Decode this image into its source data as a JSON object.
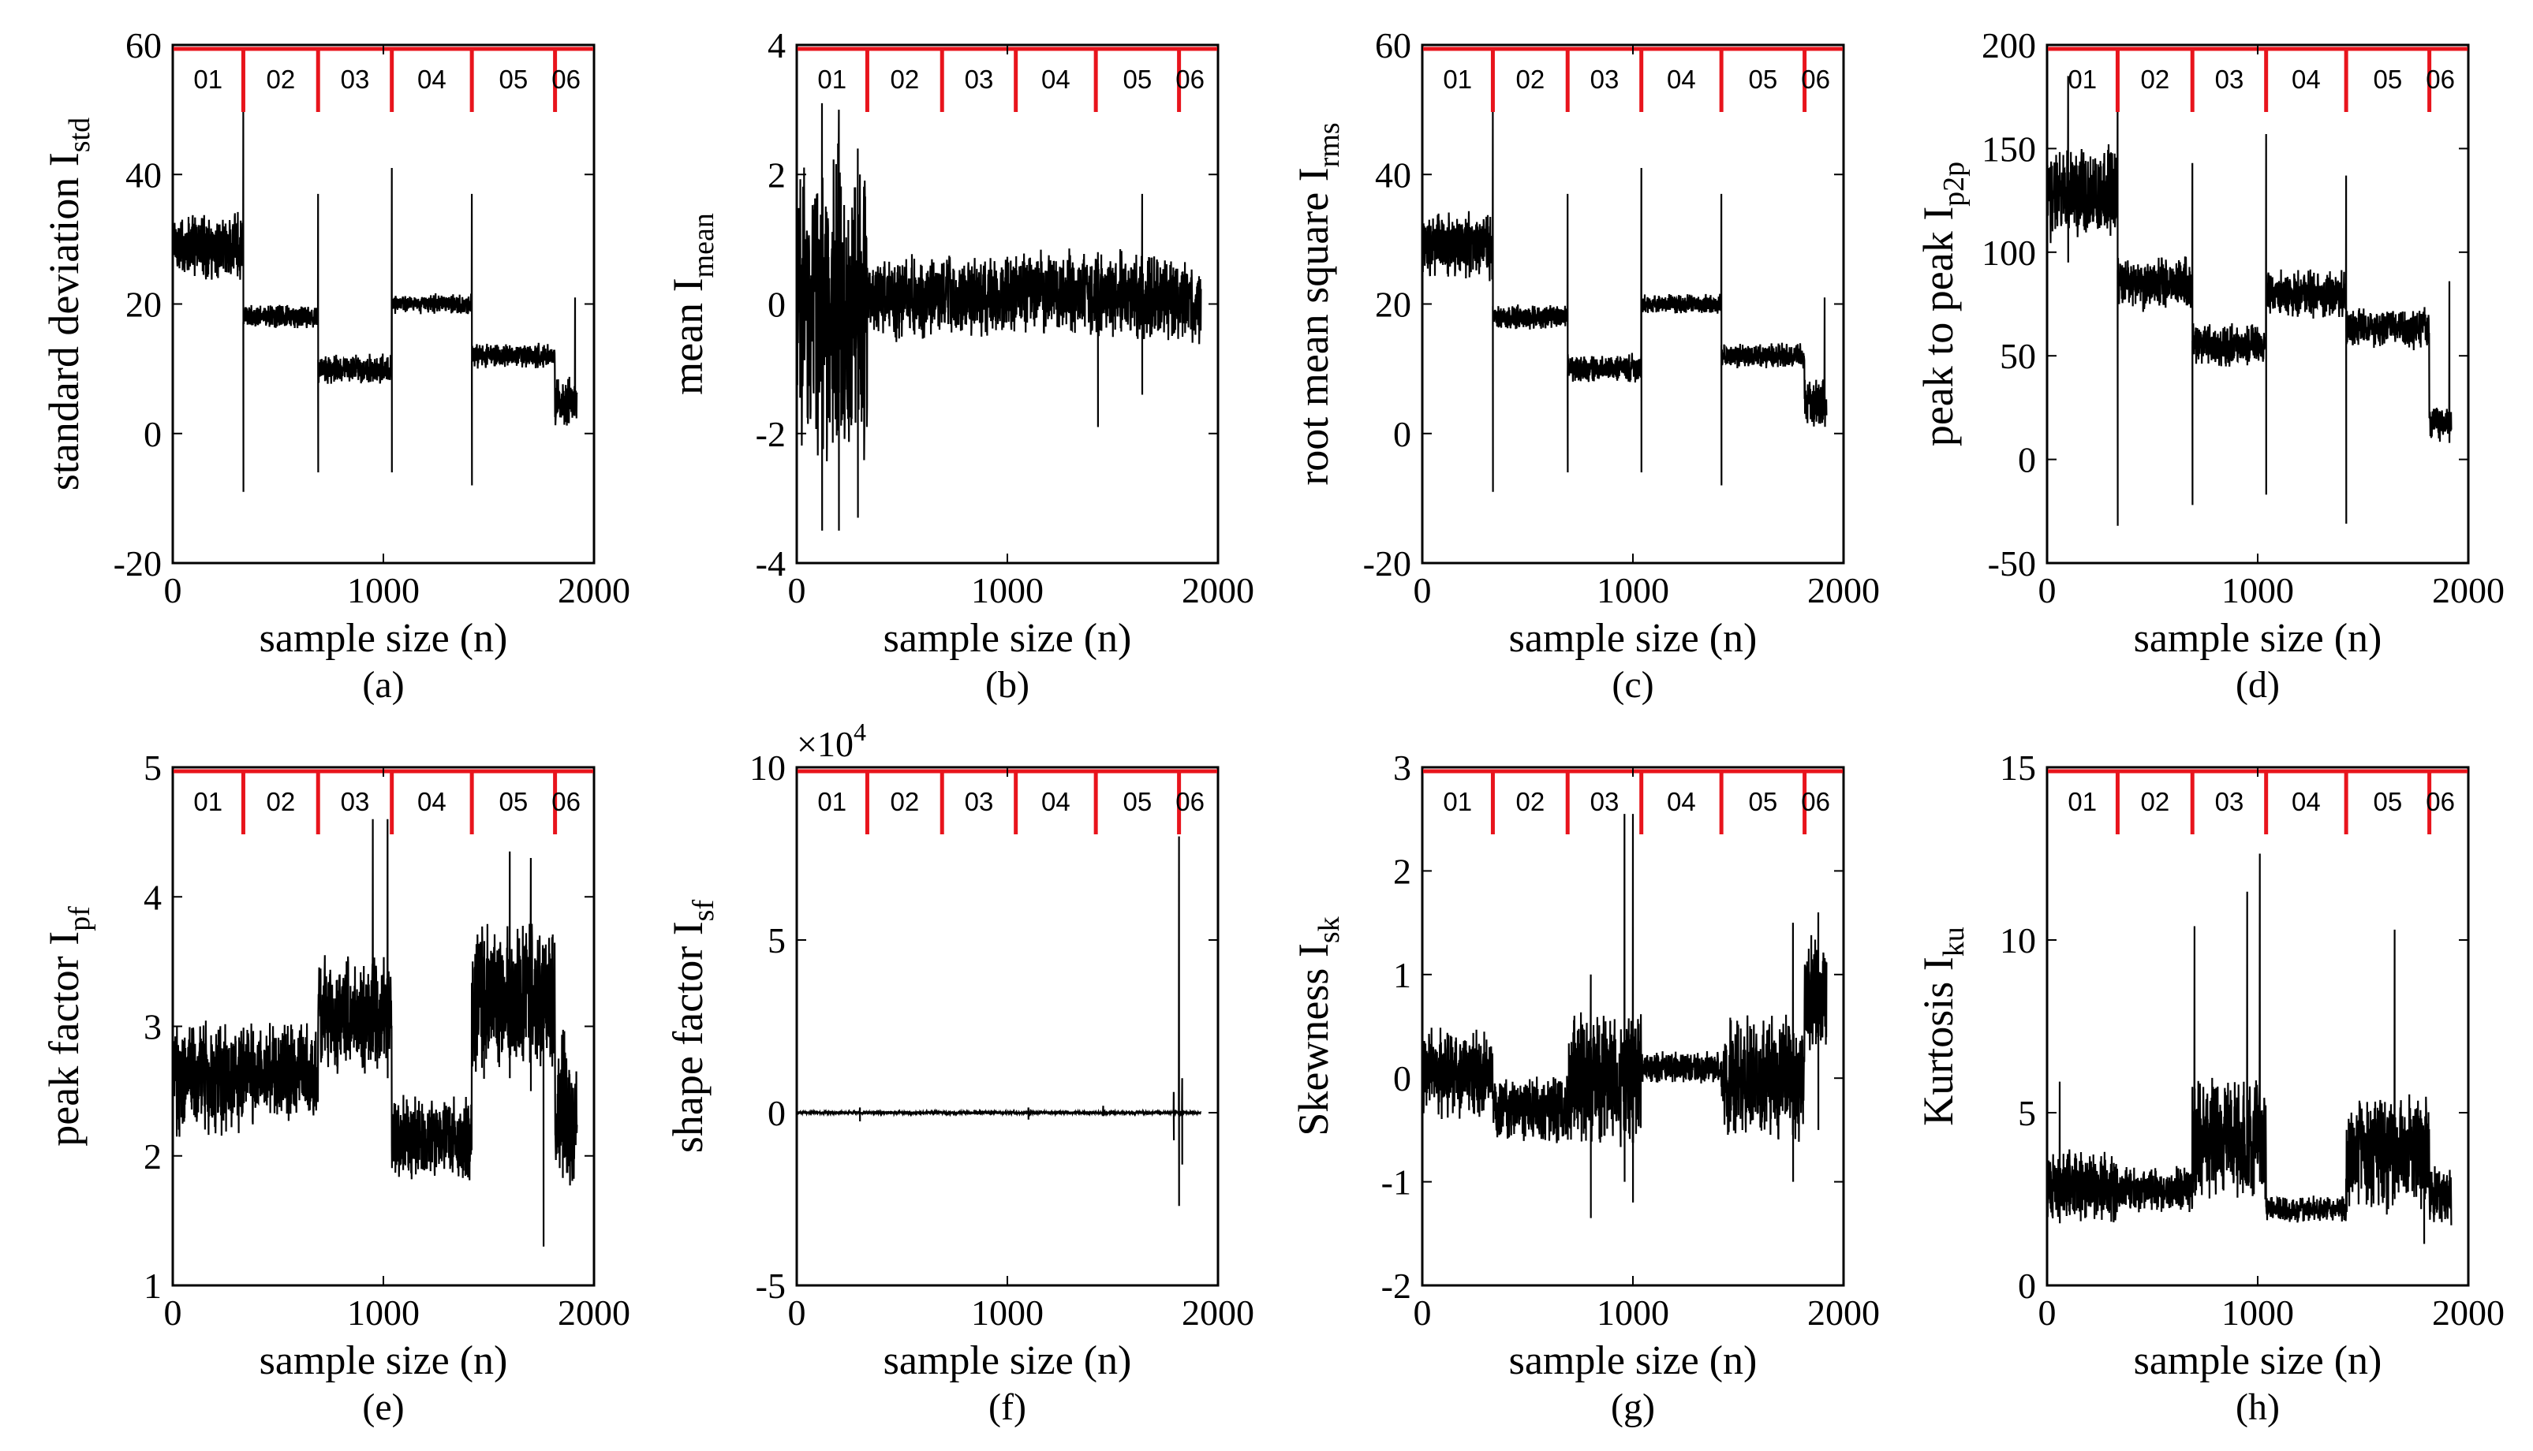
{
  "colors": {
    "signal": "#000000",
    "segment_marker": "#e8141c",
    "axes": "#000000",
    "background": "#ffffff"
  },
  "chart_data": [
    {
      "id": "a",
      "caption": "(a)",
      "type": "line",
      "ylabel": {
        "main": "standard deviation I",
        "sub": "std"
      },
      "xlabel": "sample size (n)",
      "xlim": [
        0,
        2000
      ],
      "ylim": [
        -20,
        60
      ],
      "xticks": [
        0,
        1000,
        2000
      ],
      "xtick_labels": [
        "0",
        "1000",
        "2000"
      ],
      "yticks": [
        -20,
        0,
        20,
        40,
        60
      ],
      "ytick_labels": [
        "-20",
        "0",
        "20",
        "40",
        "60"
      ],
      "segment_labels": [
        "01",
        "02",
        "03",
        "04",
        "05",
        "06"
      ],
      "segment_boundaries": [
        0,
        335,
        690,
        1040,
        1420,
        1815,
        1920
      ],
      "series": [
        {
          "segments": [
            {
              "start": 0,
              "end": 335,
              "level": 29,
              "noise": 4
            },
            {
              "start": 335,
              "end": 690,
              "level": 18,
              "noise": 1.5
            },
            {
              "start": 690,
              "end": 1040,
              "level": 10,
              "noise": 1.8
            },
            {
              "start": 1040,
              "end": 1420,
              "level": 20,
              "noise": 1.2
            },
            {
              "start": 1420,
              "end": 1815,
              "level": 12,
              "noise": 1.5
            },
            {
              "start": 1815,
              "end": 1920,
              "level": 5,
              "noise": 3
            }
          ],
          "spikes": [
            {
              "x": 335,
              "top": 50,
              "bottom": -9
            },
            {
              "x": 690,
              "top": 37,
              "bottom": -6
            },
            {
              "x": 1040,
              "top": 41,
              "bottom": -6
            },
            {
              "x": 1420,
              "top": 37,
              "bottom": -8
            },
            {
              "x": 1910,
              "top": 21,
              "bottom": 5
            }
          ]
        }
      ]
    },
    {
      "id": "b",
      "caption": "(b)",
      "type": "line",
      "ylabel": {
        "main": "mean I",
        "sub": "mean"
      },
      "xlabel": "sample size (n)",
      "xlim": [
        0,
        2000
      ],
      "ylim": [
        -4,
        4
      ],
      "xticks": [
        0,
        1000,
        2000
      ],
      "xtick_labels": [
        "0",
        "1000",
        "2000"
      ],
      "yticks": [
        -4,
        -2,
        0,
        2,
        4
      ],
      "ytick_labels": [
        "-4",
        "-2",
        "0",
        "2",
        "4"
      ],
      "segment_labels": [
        "01",
        "02",
        "03",
        "04",
        "05",
        "06"
      ],
      "segment_boundaries": [
        0,
        335,
        690,
        1040,
        1420,
        1815,
        1920
      ],
      "series": [
        {
          "segments": [
            {
              "start": 0,
              "end": 335,
              "level": 0,
              "noise": 1.8
            },
            {
              "start": 335,
              "end": 690,
              "level": 0.1,
              "noise": 0.5
            },
            {
              "start": 690,
              "end": 1040,
              "level": 0.1,
              "noise": 0.5
            },
            {
              "start": 1040,
              "end": 1420,
              "level": 0.2,
              "noise": 0.5
            },
            {
              "start": 1420,
              "end": 1815,
              "level": 0.1,
              "noise": 0.55
            },
            {
              "start": 1815,
              "end": 1920,
              "level": 0,
              "noise": 0.5
            }
          ],
          "spikes": [
            {
              "x": 120,
              "top": 3.1,
              "bottom": -3.5
            },
            {
              "x": 200,
              "top": 3.0,
              "bottom": -3.5
            },
            {
              "x": 290,
              "top": 2.4,
              "bottom": -3.3
            },
            {
              "x": 1430,
              "top": 0.8,
              "bottom": -1.9
            },
            {
              "x": 1640,
              "top": 1.7,
              "bottom": -1.4
            }
          ]
        }
      ]
    },
    {
      "id": "c",
      "caption": "(c)",
      "type": "line",
      "ylabel": {
        "main": "root mean square I",
        "sub": "rms"
      },
      "xlabel": "sample size (n)",
      "xlim": [
        0,
        2000
      ],
      "ylim": [
        -20,
        60
      ],
      "xticks": [
        0,
        1000,
        2000
      ],
      "xtick_labels": [
        "0",
        "1000",
        "2000"
      ],
      "yticks": [
        -20,
        0,
        20,
        40,
        60
      ],
      "ytick_labels": [
        "-20",
        "0",
        "20",
        "40",
        "60"
      ],
      "segment_labels": [
        "01",
        "02",
        "03",
        "04",
        "05",
        "06"
      ],
      "segment_boundaries": [
        0,
        335,
        690,
        1040,
        1420,
        1815,
        1920
      ],
      "series": [
        {
          "segments": [
            {
              "start": 0,
              "end": 335,
              "level": 29,
              "noise": 4
            },
            {
              "start": 335,
              "end": 690,
              "level": 18,
              "noise": 1.5
            },
            {
              "start": 690,
              "end": 1040,
              "level": 10,
              "noise": 1.8
            },
            {
              "start": 1040,
              "end": 1420,
              "level": 20,
              "noise": 1.2
            },
            {
              "start": 1420,
              "end": 1815,
              "level": 12,
              "noise": 1.5
            },
            {
              "start": 1815,
              "end": 1920,
              "level": 5,
              "noise": 3
            }
          ],
          "spikes": [
            {
              "x": 335,
              "top": 50,
              "bottom": -9
            },
            {
              "x": 690,
              "top": 37,
              "bottom": -6
            },
            {
              "x": 1040,
              "top": 41,
              "bottom": -6
            },
            {
              "x": 1420,
              "top": 37,
              "bottom": -8
            },
            {
              "x": 1910,
              "top": 21,
              "bottom": 5
            }
          ]
        }
      ]
    },
    {
      "id": "d",
      "caption": "(d)",
      "type": "line",
      "ylabel": {
        "main": "peak to peak I",
        "sub": "p2p"
      },
      "xlabel": "sample size (n)",
      "xlim": [
        0,
        2000
      ],
      "ylim": [
        -50,
        200
      ],
      "xticks": [
        0,
        1000,
        2000
      ],
      "xtick_labels": [
        "0",
        "1000",
        "2000"
      ],
      "yticks": [
        -50,
        0,
        50,
        100,
        150,
        200
      ],
      "ytick_labels": [
        "-50",
        "0",
        "50",
        "100",
        "150",
        "200"
      ],
      "segment_labels": [
        "01",
        "02",
        "03",
        "04",
        "05",
        "06"
      ],
      "segment_boundaries": [
        0,
        335,
        690,
        1040,
        1420,
        1815,
        1920
      ],
      "series": [
        {
          "segments": [
            {
              "start": 0,
              "end": 335,
              "level": 128,
              "noise": 18
            },
            {
              "start": 335,
              "end": 690,
              "level": 85,
              "noise": 10
            },
            {
              "start": 690,
              "end": 1040,
              "level": 55,
              "noise": 8
            },
            {
              "start": 1040,
              "end": 1420,
              "level": 80,
              "noise": 9
            },
            {
              "start": 1420,
              "end": 1815,
              "level": 63,
              "noise": 8
            },
            {
              "start": 1815,
              "end": 1920,
              "level": 18,
              "noise": 7
            }
          ],
          "spikes": [
            {
              "x": 100,
              "top": 185,
              "bottom": 95
            },
            {
              "x": 335,
              "top": 175,
              "bottom": -32
            },
            {
              "x": 690,
              "top": 143,
              "bottom": -22
            },
            {
              "x": 1040,
              "top": 157,
              "bottom": -17
            },
            {
              "x": 1420,
              "top": 137,
              "bottom": -31
            },
            {
              "x": 1910,
              "top": 86,
              "bottom": 8
            }
          ]
        }
      ]
    },
    {
      "id": "e",
      "caption": "(e)",
      "type": "line",
      "ylabel": {
        "main": "peak factor I",
        "sub": "pf"
      },
      "xlabel": "sample size (n)",
      "xlim": [
        0,
        2000
      ],
      "ylim": [
        1,
        5
      ],
      "xticks": [
        0,
        1000,
        2000
      ],
      "xtick_labels": [
        "0",
        "1000",
        "2000"
      ],
      "yticks": [
        1,
        2,
        3,
        4,
        5
      ],
      "ytick_labels": [
        "1",
        "2",
        "3",
        "4",
        "5"
      ],
      "segment_labels": [
        "01",
        "02",
        "03",
        "04",
        "05",
        "06"
      ],
      "segment_boundaries": [
        0,
        335,
        690,
        1040,
        1420,
        1815,
        1920
      ],
      "series": [
        {
          "segments": [
            {
              "start": 0,
              "end": 335,
              "level": 2.6,
              "noise": 0.35
            },
            {
              "start": 335,
              "end": 690,
              "level": 2.65,
              "noise": 0.3
            },
            {
              "start": 690,
              "end": 1040,
              "level": 3.1,
              "noise": 0.35
            },
            {
              "start": 1040,
              "end": 1420,
              "level": 2.15,
              "noise": 0.25
            },
            {
              "start": 1420,
              "end": 1815,
              "level": 3.2,
              "noise": 0.45
            },
            {
              "start": 1815,
              "end": 1920,
              "level": 2.3,
              "noise": 0.5
            }
          ],
          "spikes": [
            {
              "x": 950,
              "top": 4.6,
              "bottom": 2.8
            },
            {
              "x": 1020,
              "top": 4.6,
              "bottom": 2.6
            },
            {
              "x": 1600,
              "top": 4.35,
              "bottom": 2.6
            },
            {
              "x": 1700,
              "top": 4.3,
              "bottom": 2.5
            },
            {
              "x": 1760,
              "top": 3.5,
              "bottom": 1.3
            }
          ]
        }
      ]
    },
    {
      "id": "f",
      "caption": "(f)",
      "type": "line",
      "ylabel": {
        "main": "shape factor I",
        "sub": "sf"
      },
      "xlabel": "sample size (n)",
      "xlim": [
        0,
        2000
      ],
      "ylim": [
        -5,
        10
      ],
      "y_multiplier": "×10",
      "y_multiplier_exponent": "4",
      "xticks": [
        0,
        1000,
        2000
      ],
      "xtick_labels": [
        "0",
        "1000",
        "2000"
      ],
      "yticks": [
        -5,
        0,
        5,
        10
      ],
      "ytick_labels": [
        "-5",
        "0",
        "5",
        "10"
      ],
      "segment_labels": [
        "01",
        "02",
        "03",
        "04",
        "05",
        "06"
      ],
      "segment_boundaries": [
        0,
        335,
        690,
        1040,
        1420,
        1815,
        1920
      ],
      "series": [
        {
          "segments": [
            {
              "start": 0,
              "end": 1920,
              "level": 0,
              "noise": 0.03
            }
          ],
          "spikes": [
            {
              "x": 300,
              "top": 0.15,
              "bottom": -0.25
            },
            {
              "x": 1100,
              "top": 0.15,
              "bottom": -0.2
            },
            {
              "x": 1455,
              "top": 0.2,
              "bottom": -0.1
            },
            {
              "x": 1790,
              "top": 0.6,
              "bottom": -0.8
            },
            {
              "x": 1815,
              "top": 8.0,
              "bottom": -2.7
            },
            {
              "x": 1830,
              "top": 1.0,
              "bottom": -1.5
            }
          ]
        }
      ]
    },
    {
      "id": "g",
      "caption": "(g)",
      "type": "line",
      "ylabel": {
        "main": "Skewness I",
        "sub": "sk"
      },
      "xlabel": "sample size (n)",
      "xlim": [
        0,
        2000
      ],
      "ylim": [
        -2,
        3
      ],
      "xticks": [
        0,
        1000,
        2000
      ],
      "xtick_labels": [
        "0",
        "1000",
        "2000"
      ],
      "yticks": [
        -2,
        -1,
        0,
        1,
        2,
        3
      ],
      "ytick_labels": [
        "-2",
        "-1",
        "0",
        "1",
        "2",
        "3"
      ],
      "segment_labels": [
        "01",
        "02",
        "03",
        "04",
        "05",
        "06"
      ],
      "segment_boundaries": [
        0,
        335,
        690,
        1040,
        1420,
        1815,
        1920
      ],
      "series": [
        {
          "segments": [
            {
              "start": 0,
              "end": 335,
              "level": 0.05,
              "noise": 0.35
            },
            {
              "start": 335,
              "end": 690,
              "level": -0.3,
              "noise": 0.25
            },
            {
              "start": 690,
              "end": 1040,
              "level": 0,
              "noise": 0.5
            },
            {
              "start": 1040,
              "end": 1420,
              "level": 0.1,
              "noise": 0.12
            },
            {
              "start": 1420,
              "end": 1815,
              "level": 0,
              "noise": 0.45
            },
            {
              "start": 1815,
              "end": 1920,
              "level": 0.8,
              "noise": 0.45
            }
          ],
          "spikes": [
            {
              "x": 960,
              "top": 2.55,
              "bottom": -1.0
            },
            {
              "x": 1000,
              "top": 2.55,
              "bottom": -1.2
            },
            {
              "x": 800,
              "top": 1.0,
              "bottom": -1.35
            },
            {
              "x": 1760,
              "top": 1.5,
              "bottom": -1.0
            },
            {
              "x": 1880,
              "top": 1.6,
              "bottom": -0.5
            }
          ]
        }
      ]
    },
    {
      "id": "h",
      "caption": "(h)",
      "type": "line",
      "ylabel": {
        "main": "Kurtosis I",
        "sub": "ku"
      },
      "xlabel": "sample size (n)",
      "xlim": [
        0,
        2000
      ],
      "ylim": [
        0,
        15
      ],
      "xticks": [
        0,
        1000,
        2000
      ],
      "xtick_labels": [
        "0",
        "1000",
        "2000"
      ],
      "yticks": [
        0,
        5,
        10,
        15
      ],
      "ytick_labels": [
        "0",
        "5",
        "10",
        "15"
      ],
      "segment_labels": [
        "01",
        "02",
        "03",
        "04",
        "05",
        "06"
      ],
      "segment_boundaries": [
        0,
        335,
        690,
        1040,
        1420,
        1815,
        1920
      ],
      "series": [
        {
          "segments": [
            {
              "start": 0,
              "end": 335,
              "level": 2.9,
              "noise": 0.8
            },
            {
              "start": 335,
              "end": 690,
              "level": 2.8,
              "noise": 0.5
            },
            {
              "start": 690,
              "end": 1040,
              "level": 4.2,
              "noise": 1.4
            },
            {
              "start": 1040,
              "end": 1420,
              "level": 2.2,
              "noise": 0.3
            },
            {
              "start": 1420,
              "end": 1815,
              "level": 3.8,
              "noise": 1.3
            },
            {
              "start": 1815,
              "end": 1920,
              "level": 2.6,
              "noise": 0.7
            }
          ],
          "spikes": [
            {
              "x": 60,
              "top": 5.9,
              "bottom": 1.8
            },
            {
              "x": 700,
              "top": 10.4,
              "bottom": 3.0
            },
            {
              "x": 950,
              "top": 11.4,
              "bottom": 3.0
            },
            {
              "x": 1010,
              "top": 12.5,
              "bottom": 3.0
            },
            {
              "x": 1650,
              "top": 10.3,
              "bottom": 2.5
            },
            {
              "x": 1790,
              "top": 4.5,
              "bottom": 1.2
            }
          ]
        }
      ]
    }
  ]
}
